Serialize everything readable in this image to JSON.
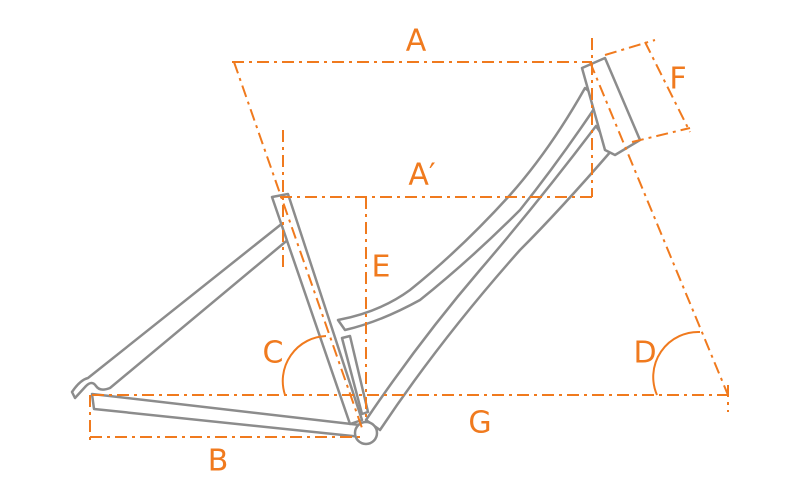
{
  "dimensions": [
    {
      "label": "A"
    },
    {
      "label": "A′"
    },
    {
      "label": "B"
    },
    {
      "label": "C"
    },
    {
      "label": "D"
    },
    {
      "label": "E"
    },
    {
      "label": "F"
    },
    {
      "label": "G"
    }
  ]
}
